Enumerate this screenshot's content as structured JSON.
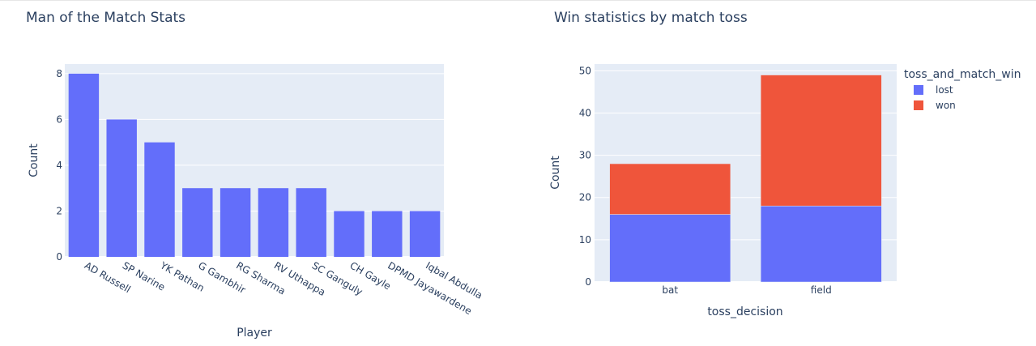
{
  "chart_data": [
    {
      "type": "bar",
      "title": "Man of the Match Stats",
      "xlabel": "Player",
      "ylabel": "Count",
      "categories": [
        "AD Russell",
        "SP Narine",
        "YK Pathan",
        "G Gambhir",
        "RG Sharma",
        "RV Uthappa",
        "SC Ganguly",
        "CH Gayle",
        "DPMD Jayawardene",
        "Iqbal Abdulla"
      ],
      "values": [
        8,
        6,
        5,
        3,
        3,
        3,
        3,
        2,
        2,
        2
      ],
      "ylim": [
        0,
        8.42
      ],
      "yticks": [
        "0",
        "2",
        "4",
        "6",
        "8"
      ],
      "grid": true,
      "color": "#636efa"
    },
    {
      "type": "bar",
      "stacked": true,
      "title": "Win statistics by match toss",
      "xlabel": "toss_decision",
      "ylabel": "Count",
      "categories": [
        "bat",
        "field"
      ],
      "series": [
        {
          "name": "lost",
          "values": [
            16,
            18
          ],
          "color": "#636efa"
        },
        {
          "name": "won",
          "values": [
            12,
            31
          ],
          "color": "#ef553b"
        }
      ],
      "ylim": [
        0,
        51.6
      ],
      "yticks": [
        "0",
        "10",
        "20",
        "30",
        "40",
        "50"
      ],
      "legend_title": "toss_and_match_win",
      "legend_position": "top-right",
      "grid": true
    }
  ]
}
